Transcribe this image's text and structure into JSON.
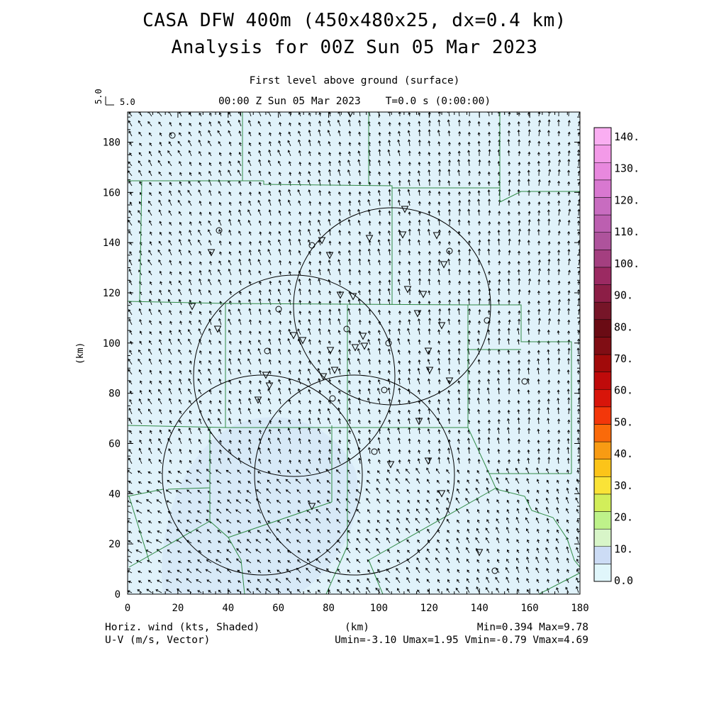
{
  "header": {
    "title_line1": "CASA DFW 400m (450x480x25, dx=0.4 km)",
    "title_line2": "Analysis for 00Z Sun 05 Mar 2023",
    "level": "First level above ground (surface)",
    "time_line": "00:00 Z Sun 05 Mar 2023    T=0.0 s (0:00:00)"
  },
  "reference_vector": {
    "label": "5.0",
    "vertical_label": "5.0"
  },
  "axes": {
    "x_label": "(km)",
    "y_label": "(km)",
    "x_ticks": [
      "0",
      "20",
      "40",
      "60",
      "80",
      "100",
      "120",
      "140",
      "160",
      "180"
    ],
    "y_ticks": [
      "0",
      "20",
      "40",
      "60",
      "80",
      "100",
      "120",
      "140",
      "160",
      "180"
    ],
    "xlim": [
      0,
      180
    ],
    "ylim": [
      0,
      192
    ]
  },
  "colorbar": {
    "labels": [
      "0.0",
      "10.",
      "20.",
      "30.",
      "40.",
      "50.",
      "60.",
      "70.",
      "80.",
      "90.",
      "100.",
      "110.",
      "120.",
      "130.",
      "140."
    ],
    "colors": [
      "#e0f6fb",
      "#ccdcf5",
      "#d8f5c8",
      "#bef28a",
      "#d2ee5a",
      "#fae337",
      "#fcc419",
      "#f89b13",
      "#fa6a0a",
      "#f3370a",
      "#d8150a",
      "#bf0a0a",
      "#a10a0a",
      "#800d14",
      "#6a0b14",
      "#761528",
      "#8c1e46",
      "#9b2a62",
      "#a43f80",
      "#ae539c",
      "#bc5fb0",
      "#c86cc0",
      "#d878d0",
      "#e888de",
      "#f39ae8",
      "#faaef2"
    ]
  },
  "map_colors": {
    "field": "#e0f2fa",
    "field_dark": "#d4e6f6",
    "boundaries": "#2f8a45"
  },
  "footer": {
    "left1": "Horiz. wind (kts, Shaded)",
    "left2": "U-V (m/s, Vector)",
    "center": "(km)",
    "right1": "Min=0.394 Max=9.78",
    "right2": "Umin=-3.10 Umax=1.95 Vmin=-0.79 Vmax=4.69"
  }
}
